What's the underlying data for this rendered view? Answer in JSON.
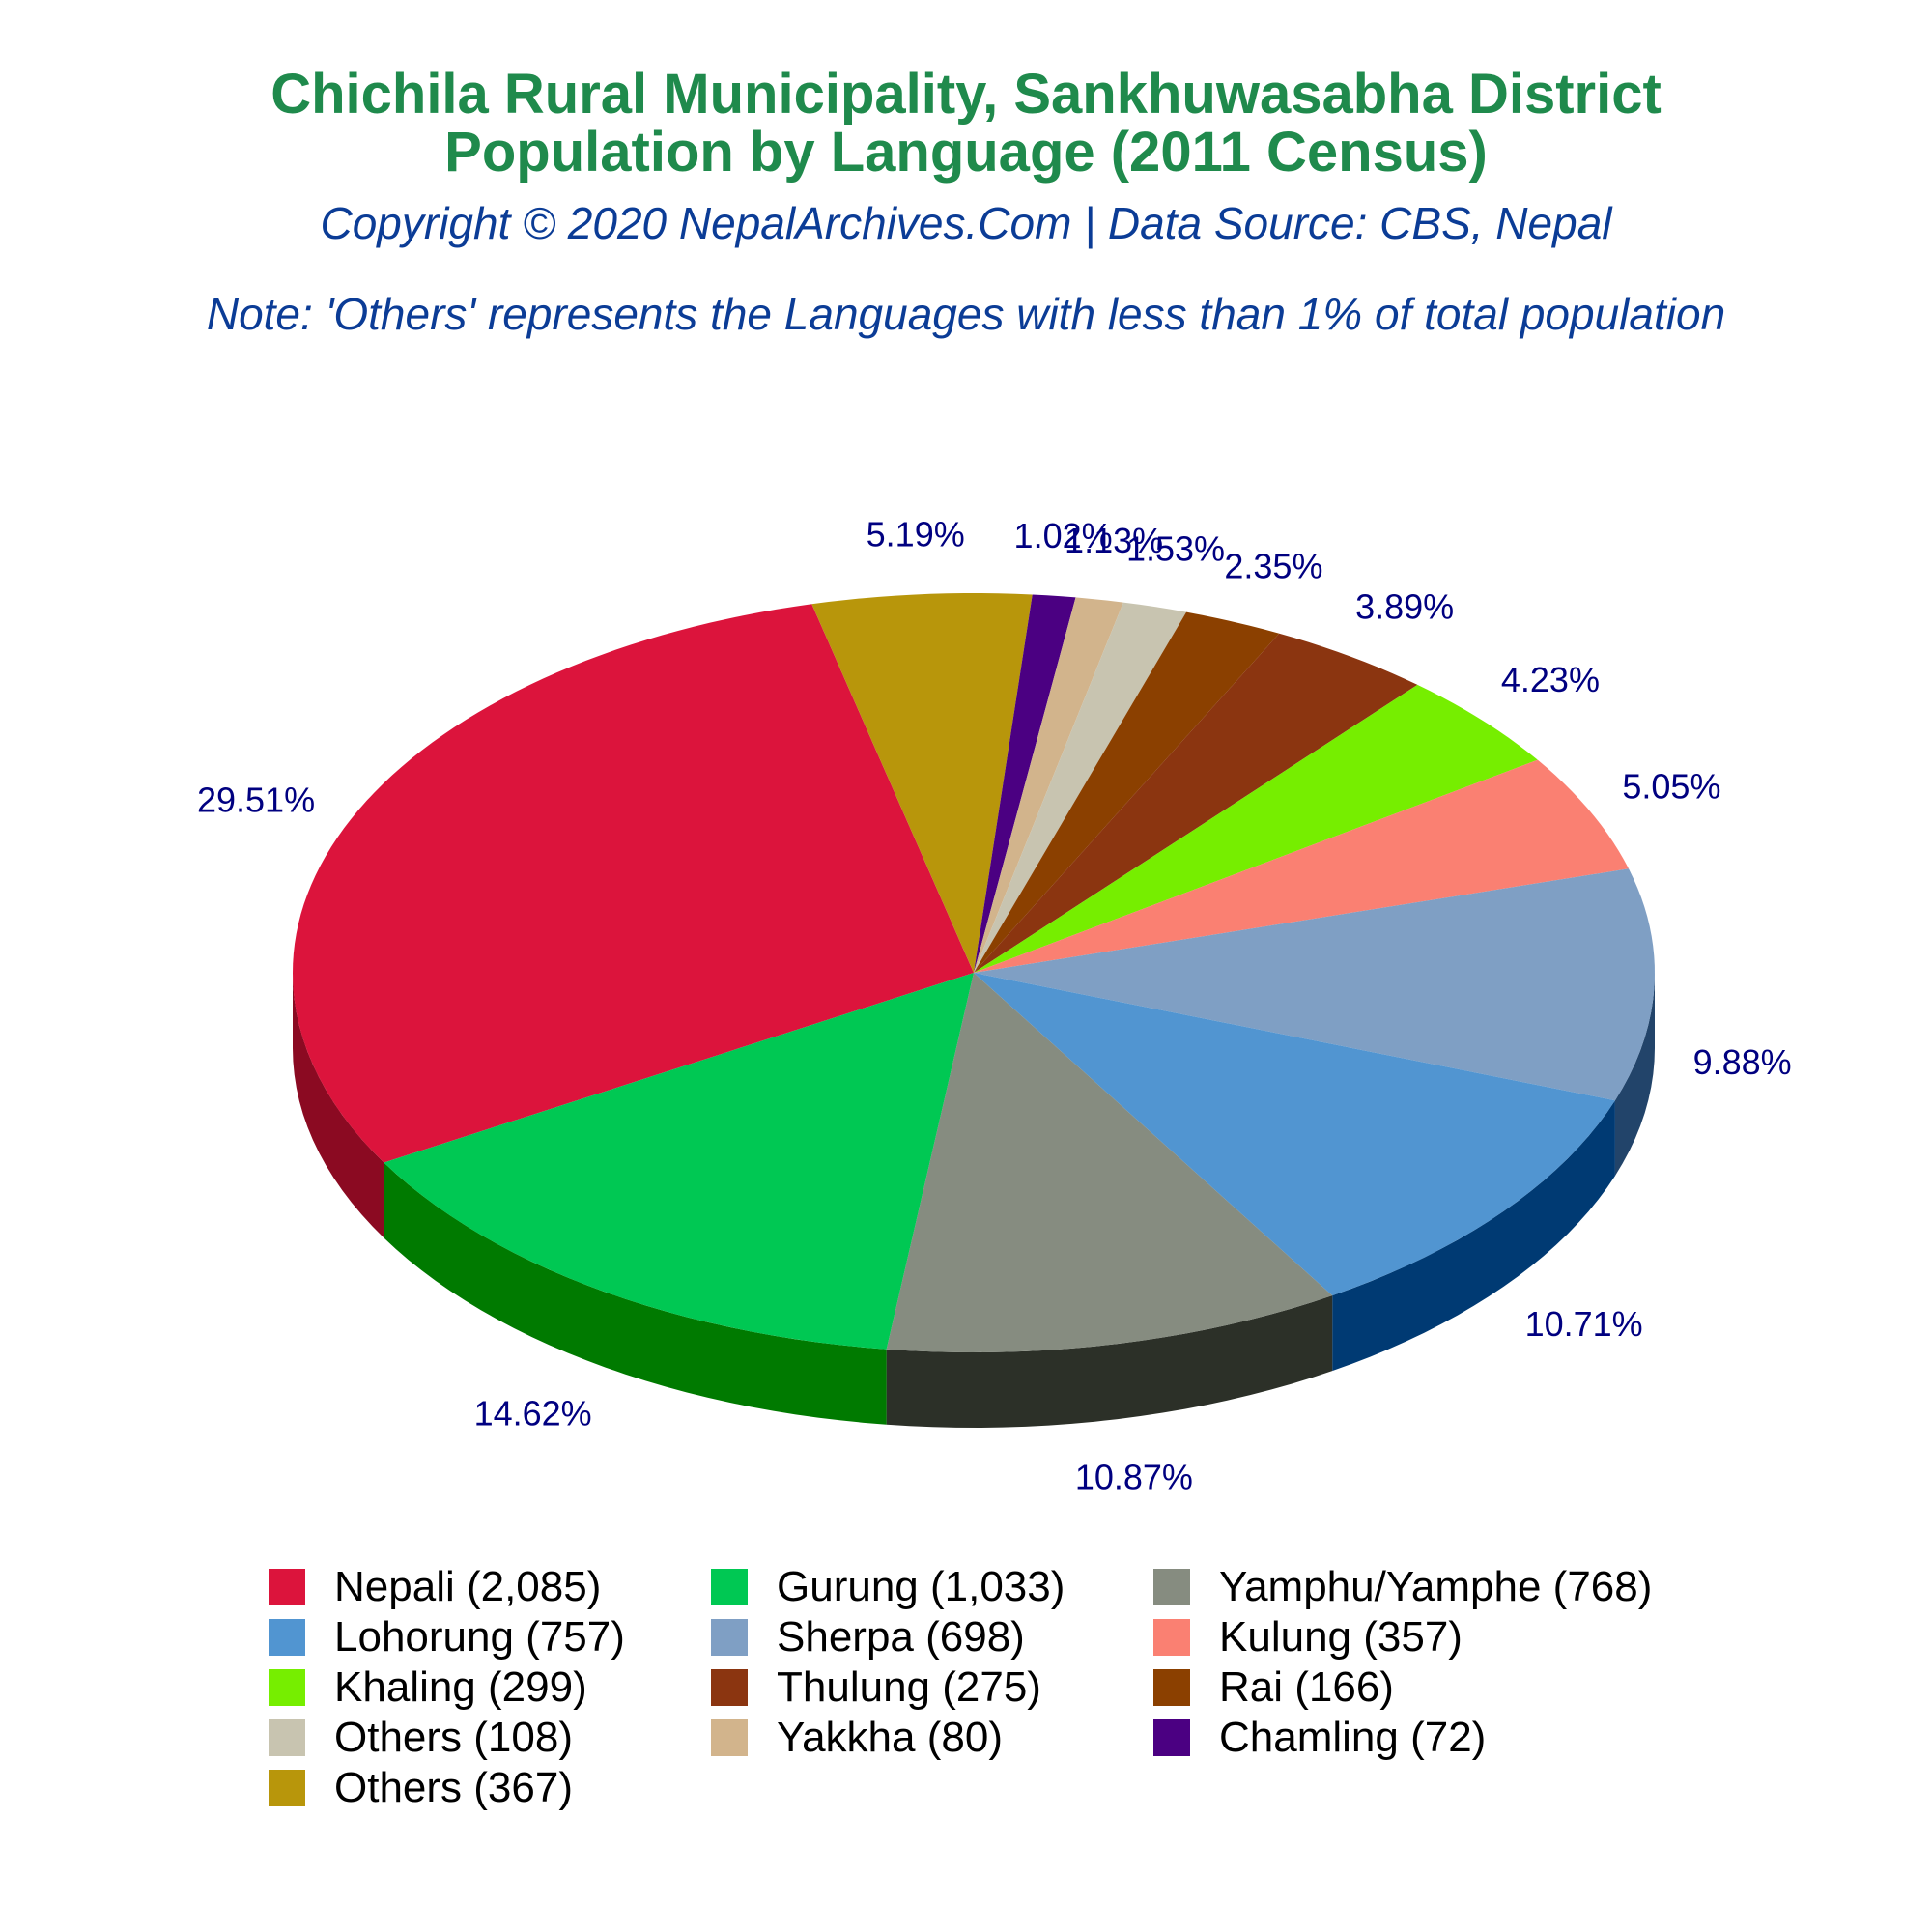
{
  "header": {
    "title_line1": "Chichila Rural Municipality, Sankhuwasabha District",
    "title_line2": "Population by Language (2011 Census)",
    "copyright": "Copyright © 2020 NepalArchives.Com | Data Source: CBS, Nepal",
    "note": "Note: 'Others' represents the Languages with less than 1% of total population"
  },
  "chart_data": {
    "type": "pie",
    "style": "3d",
    "legend_position": "bottom",
    "slices": [
      {
        "label": "Nepali (2,085)",
        "name": "Nepali",
        "value": 2085,
        "percent": "29.51%",
        "color": "#dc143c",
        "side": "#8b0a22"
      },
      {
        "label": "Others (367)",
        "name": "Others",
        "value": 367,
        "percent": "5.19%",
        "color": "#b8960b",
        "side": "#7a6307"
      },
      {
        "label": "Chamling (72)",
        "name": "Chamling",
        "value": 72,
        "percent": "1.02%",
        "color": "#4b0082",
        "side": "#2e0050"
      },
      {
        "label": "Yakkha (80)",
        "name": "Yakkha",
        "value": 80,
        "percent": "1.13%",
        "color": "#d2b48c",
        "side": "#8c7556"
      },
      {
        "label": "Others (108)",
        "name": "Others",
        "value": 108,
        "percent": "1.53%",
        "color": "#c8c4b0",
        "side": "#86836f"
      },
      {
        "label": "Rai (166)",
        "name": "Rai",
        "value": 166,
        "percent": "2.35%",
        "color": "#8b4000",
        "side": "#4a2000"
      },
      {
        "label": "Thulung (275)",
        "name": "Thulung",
        "value": 275,
        "percent": "3.89%",
        "color": "#8b3510",
        "side": "#3a0a00"
      },
      {
        "label": "Khaling (299)",
        "name": "Khaling",
        "value": 299,
        "percent": "4.23%",
        "color": "#76ee00",
        "side": "#1f9000"
      },
      {
        "label": "Kulung (357)",
        "name": "Kulung",
        "value": 357,
        "percent": "5.05%",
        "color": "#fa8072",
        "side": "#a0281b"
      },
      {
        "label": "Sherpa (698)",
        "name": "Sherpa",
        "value": 698,
        "percent": "9.88%",
        "color": "#7f9fc4",
        "side": "#22446a"
      },
      {
        "label": "Lohorung (757)",
        "name": "Lohorung",
        "value": 757,
        "percent": "10.71%",
        "color": "#5195d1",
        "side": "#003a73"
      },
      {
        "label": "Yamphu/Yamphe (768)",
        "name": "Yamphu/Yamphe",
        "value": 768,
        "percent": "10.87%",
        "color": "#868c80",
        "side": "#2c3028"
      },
      {
        "label": "Gurung (1,033)",
        "name": "Gurung",
        "value": 1033,
        "percent": "14.62%",
        "color": "#00c853",
        "side": "#007a00"
      }
    ],
    "legend_order": [
      0,
      12,
      11,
      10,
      9,
      8,
      7,
      6,
      5,
      4,
      3,
      2,
      1
    ]
  }
}
